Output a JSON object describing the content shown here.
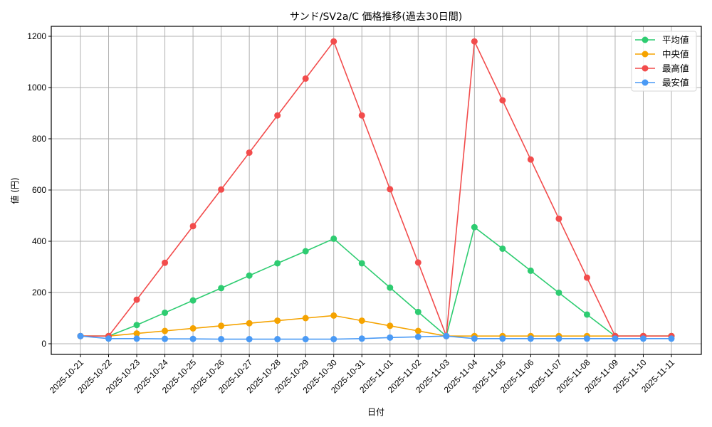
{
  "chart_data": {
    "type": "line",
    "title": "サンド/SV2a/C 価格推移(過去30日間)",
    "xlabel": "日付",
    "ylabel": "値 (円)",
    "ylim": [
      -40,
      1240
    ],
    "yticks": [
      0,
      200,
      400,
      600,
      800,
      1000,
      1200
    ],
    "grid": true,
    "legend_position": "upper right",
    "categories": [
      "2025-10-21",
      "2025-10-22",
      "2025-10-23",
      "2025-10-24",
      "2025-10-25",
      "2025-10-26",
      "2025-10-27",
      "2025-10-28",
      "2025-10-29",
      "2025-10-30",
      "2025-10-31",
      "2025-11-01",
      "2025-11-02",
      "2025-11-03",
      "2025-11-04",
      "2025-11-05",
      "2025-11-06",
      "2025-11-07",
      "2025-11-08",
      "2025-11-09",
      "2025-11-10",
      "2025-11-11"
    ],
    "series": [
      {
        "name": "平均値",
        "color": "#2ecc71",
        "values": [
          30,
          30,
          73,
          121,
          169,
          217,
          266,
          314,
          361,
          410,
          314,
          219,
          124,
          30,
          455,
          371,
          285,
          199,
          114,
          30,
          30,
          30
        ]
      },
      {
        "name": "中央値",
        "color": "#f5a300",
        "values": [
          30,
          30,
          40,
          50,
          60,
          70,
          80,
          90,
          100,
          110,
          90,
          70,
          50,
          30,
          30,
          30,
          30,
          30,
          30,
          30,
          30,
          30
        ]
      },
      {
        "name": "最高値",
        "color": "#f24c4c",
        "values": [
          30,
          30,
          172,
          316,
          459,
          602,
          746,
          891,
          1035,
          1180,
          891,
          603,
          317,
          30,
          1180,
          950,
          719,
          488,
          258,
          30,
          30,
          30
        ]
      },
      {
        "name": "最安値",
        "color": "#4a9af5",
        "values": [
          30,
          20,
          20,
          19,
          19,
          18,
          18,
          18,
          18,
          18,
          20,
          24,
          27,
          30,
          20,
          20,
          20,
          20,
          20,
          20,
          20,
          20
        ]
      }
    ]
  }
}
